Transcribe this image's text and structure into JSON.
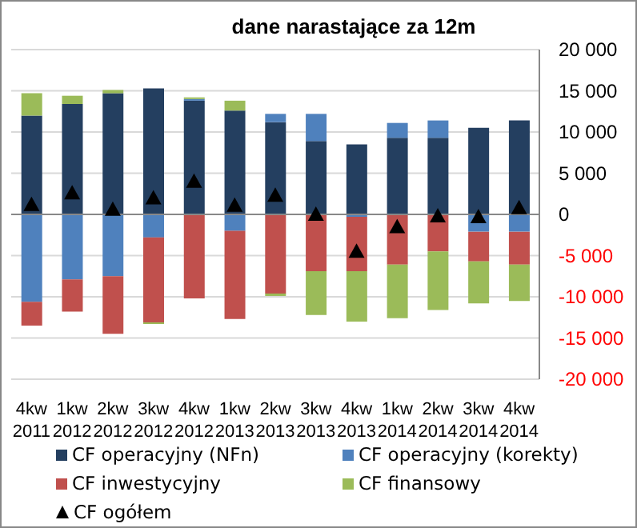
{
  "chart_data": {
    "type": "bar",
    "title": "dane narastające za 12m",
    "stacked": true,
    "categories": [
      "4kw 2011",
      "1kw 2012",
      "2kw 2012",
      "3kw 2012",
      "4kw 2012",
      "1kw 2013",
      "2kw 2013",
      "3kw 2013",
      "4kw 2013",
      "1kw 2014",
      "2kw 2014",
      "3kw 2014",
      "4kw 2014"
    ],
    "series": [
      {
        "name": "CF operacyjny (NFn)",
        "color": "#243f60",
        "values": [
          12000,
          13400,
          14700,
          15300,
          13800,
          12600,
          11200,
          8900,
          8500,
          9300,
          9300,
          10500,
          11400
        ]
      },
      {
        "name": "CF operacyjny (korekty)",
        "color": "#4f81bd",
        "values": [
          -10600,
          -7900,
          -7500,
          -2800,
          200,
          -2000,
          1000,
          3300,
          -300,
          1800,
          2100,
          -2100,
          -2100
        ]
      },
      {
        "name": "CF inwestycyjny",
        "color": "#c0504d",
        "values": [
          -2900,
          -3900,
          -7000,
          -10300,
          -10200,
          -10700,
          -9600,
          -6900,
          -6600,
          -6100,
          -4500,
          -3600,
          -4000
        ]
      },
      {
        "name": "CF finansowy",
        "color": "#9bbb59",
        "values": [
          2700,
          1000,
          400,
          -200,
          200,
          1200,
          -300,
          -5300,
          -6100,
          -6500,
          -7100,
          -5100,
          -4400
        ]
      },
      {
        "name": "CF ogółem",
        "type": "scatter",
        "marker": "triangle",
        "color": "#000000",
        "values": [
          1200,
          2600,
          600,
          2000,
          4000,
          1100,
          2300,
          0,
          -4500,
          -1500,
          -200,
          -300,
          800
        ]
      }
    ],
    "ylim": [
      -20000,
      20000
    ],
    "yticks": [
      {
        "value": -20000,
        "label": "-20 000"
      },
      {
        "value": -15000,
        "label": "-15 000"
      },
      {
        "value": -10000,
        "label": "-10 000"
      },
      {
        "value": -5000,
        "label": "-5 000"
      },
      0,
      {
        "value": 5000,
        "label": "5 000"
      },
      {
        "value": 10000,
        "label": "10 000"
      },
      {
        "value": 15000,
        "label": "15 000"
      },
      {
        "value": 20000,
        "label": "20 000"
      }
    ],
    "grid": "y",
    "legend": "bottom"
  }
}
